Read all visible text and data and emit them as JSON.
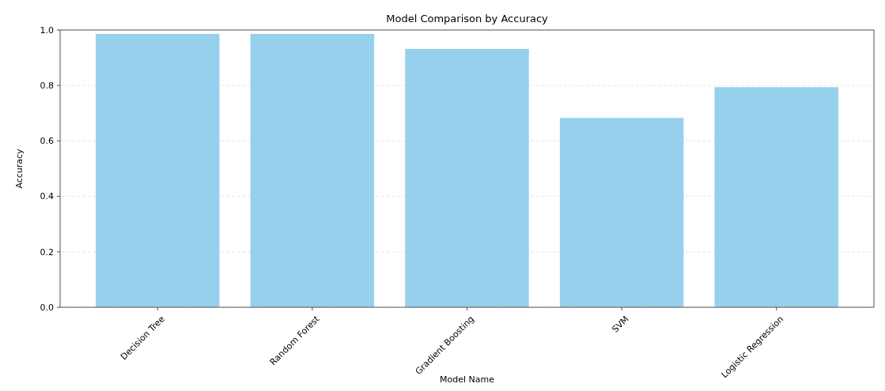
{
  "chart_data": {
    "type": "bar",
    "title": "Model Comparison by Accuracy",
    "xlabel": "Model Name",
    "ylabel": "Accuracy",
    "categories": [
      "Decision Tree",
      "Random Forest",
      "Gradient Boosting",
      "SVM",
      "Logistic Regression"
    ],
    "values": [
      0.986,
      0.986,
      0.932,
      0.683,
      0.794
    ],
    "color": "#97d0ec",
    "ylim": [
      0,
      1
    ],
    "yticks": [
      {
        "value": 0,
        "label": "0.0"
      },
      {
        "value": 0.2,
        "label": "0.2"
      },
      {
        "value": 0.4,
        "label": "0.4"
      },
      {
        "value": 0.6,
        "label": "0.6"
      },
      {
        "value": 0.8,
        "label": "0.8"
      },
      {
        "value": 1,
        "label": "1.0"
      }
    ],
    "grid": "y"
  }
}
